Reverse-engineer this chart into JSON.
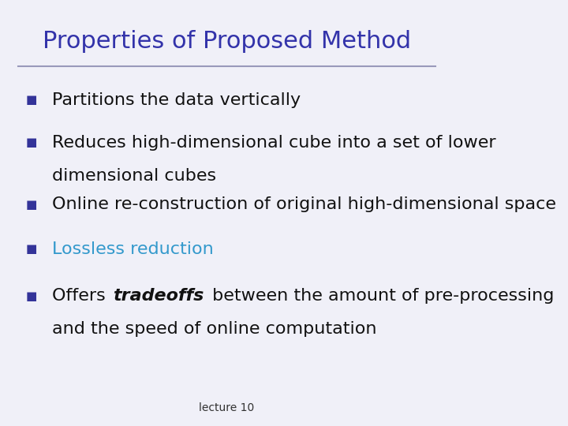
{
  "title": "Properties of Proposed Method",
  "title_color": "#3333aa",
  "title_fontsize": 22,
  "line_color": "#9999bb",
  "bullet_color": "#333399",
  "bullet_char": "■",
  "background_color": "#f0f0f8",
  "text_color": "#111111",
  "highlight_color": "#3399cc",
  "footer": "lecture 10",
  "footer_color": "#333333",
  "footer_fontsize": 10,
  "bullet_fontsize": 16,
  "bullets": [
    {
      "text": "Partitions the data vertically",
      "color": "#111111",
      "continuation": null,
      "text_parts": null
    },
    {
      "text": "Reduces high-dimensional cube into a set of lower",
      "color": "#111111",
      "continuation": "dimensional cubes",
      "text_parts": null
    },
    {
      "text": "Online re-construction of original high-dimensional space",
      "color": "#111111",
      "continuation": null,
      "text_parts": null
    },
    {
      "text": "Lossless reduction",
      "color": "#3399cc",
      "continuation": null,
      "text_parts": null
    },
    {
      "text": null,
      "color": "#111111",
      "continuation": "and the speed of online computation",
      "text_parts": [
        {
          "text": "Offers ",
          "bold": false,
          "italic": false,
          "color": "#111111"
        },
        {
          "text": "tradeoffs",
          "bold": true,
          "italic": true,
          "color": "#111111"
        },
        {
          "text": " between the amount of pre-processing",
          "bold": false,
          "italic": false,
          "color": "#111111"
        }
      ]
    }
  ]
}
